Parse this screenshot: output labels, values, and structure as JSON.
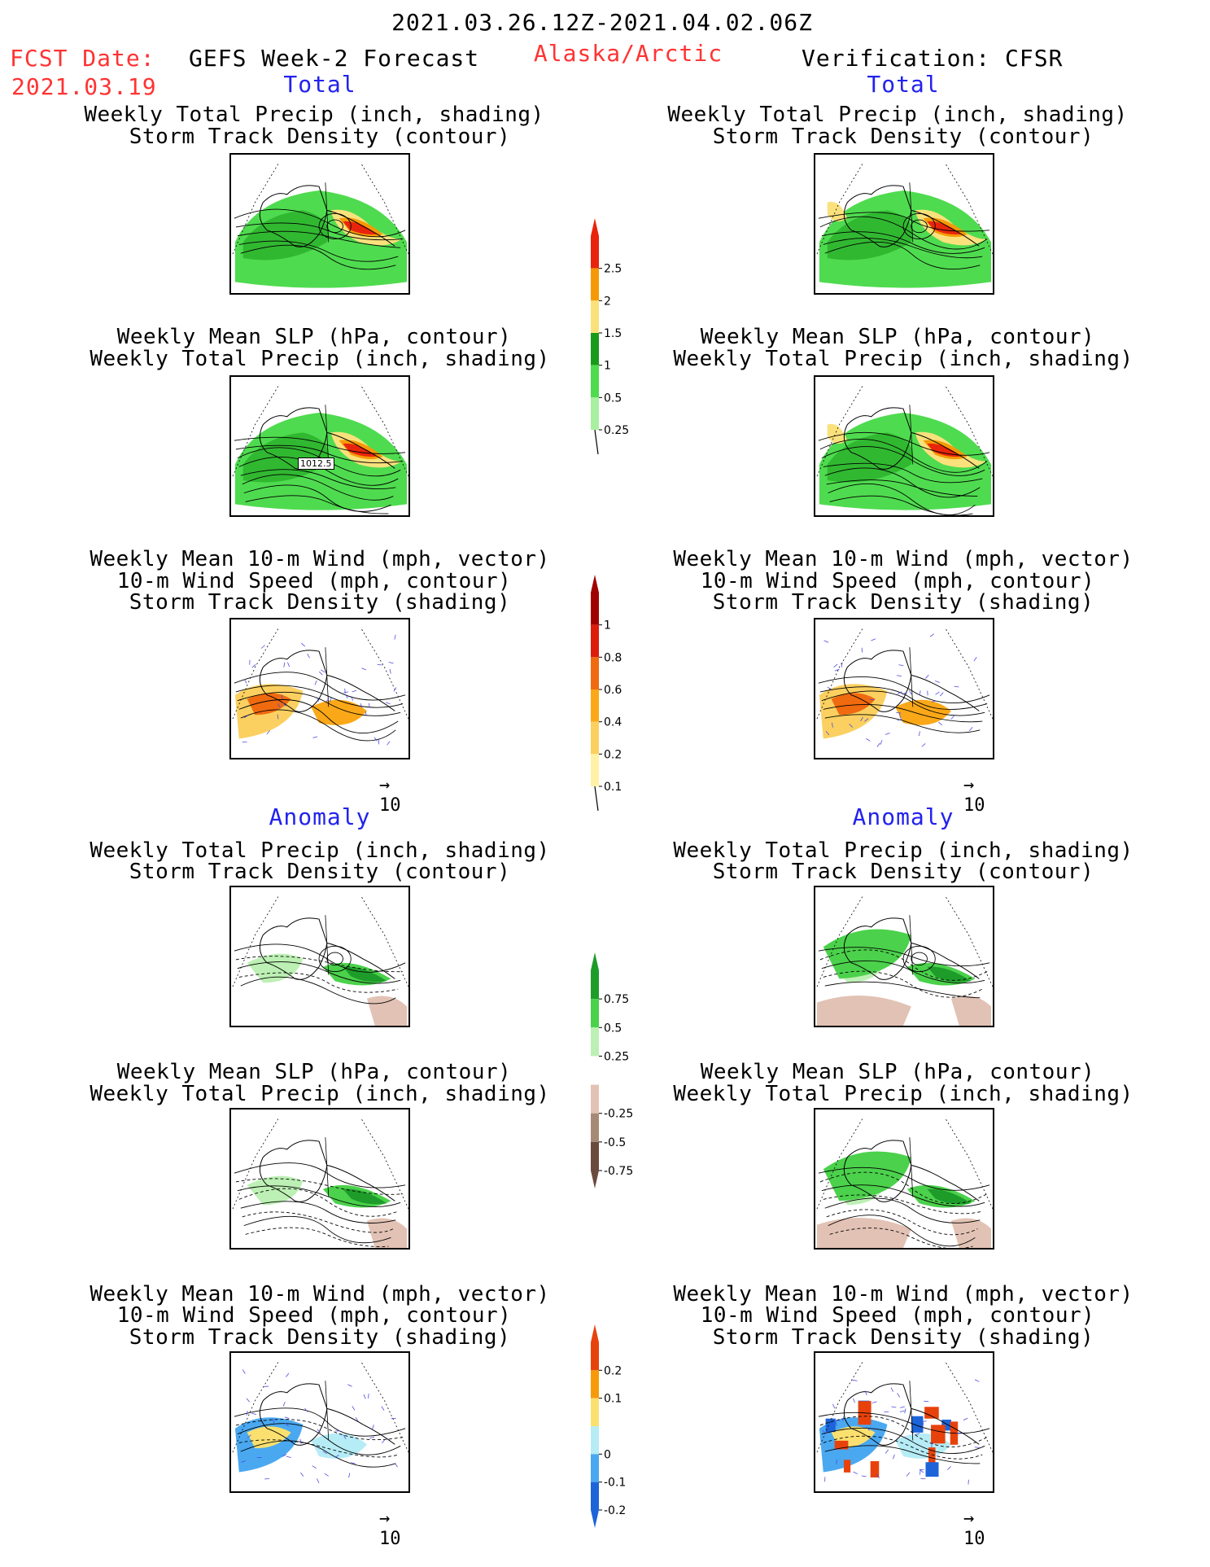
{
  "header": {
    "period": "2021.03.26.12Z-2021.04.02.06Z",
    "fcst_label": "FCST Date:",
    "fcst_date": "2021.03.19",
    "product": "GEFS Week-2 Forecast",
    "region": "Alaska/Arctic",
    "verification": "Verification: CFSR"
  },
  "sections": {
    "total": "Total",
    "anomaly": "Anomaly"
  },
  "titles": {
    "precip_track": [
      "Weekly Total Precip (inch, shading)",
      "Storm Track Density (contour)"
    ],
    "slp_precip": [
      "Weekly Mean SLP (hPa, contour)",
      "Weekly Total Precip (inch, shading)"
    ],
    "wind_track": [
      "Weekly Mean 10-m Wind (mph, vector)",
      "10-m Wind Speed (mph, contour)",
      "Storm Track Density (shading)"
    ]
  },
  "panel_label": "1012.5",
  "vector_ref": "10",
  "colorbars": {
    "precip_total": {
      "labels": [
        "2.5",
        "2",
        "1.5",
        "1",
        "0.5",
        "0.25"
      ],
      "colors": [
        "#e8250c",
        "#f59a06",
        "#fbe17c",
        "#1a9a1a",
        "#4fdb4f",
        "#a8f0a0"
      ]
    },
    "track_total": {
      "labels": [
        "1",
        "0.8",
        "0.6",
        "0.4",
        "0.2",
        "0.1"
      ],
      "colors": [
        "#a00000",
        "#dd1c0c",
        "#f06a10",
        "#fba818",
        "#fbd060",
        "#fff2a8"
      ]
    },
    "precip_anom": {
      "labels": [
        "0.75",
        "0.5",
        "0.25",
        "-0.25",
        "-0.5",
        "-0.75"
      ],
      "colors": [
        "#1e9c2a",
        "#4bd14b",
        "#bdf0b4",
        "#ffffff",
        "#e2c2b4",
        "#a78a76",
        "#6b4a3e"
      ]
    },
    "track_anom": {
      "labels": [
        "0.2",
        "0.1",
        "0",
        "-0.1",
        "-0.2"
      ],
      "colors": [
        "#e8420c",
        "#f79a0a",
        "#fbe070",
        "#b6ecf6",
        "#4aa8f0",
        "#1c64d8"
      ]
    }
  }
}
